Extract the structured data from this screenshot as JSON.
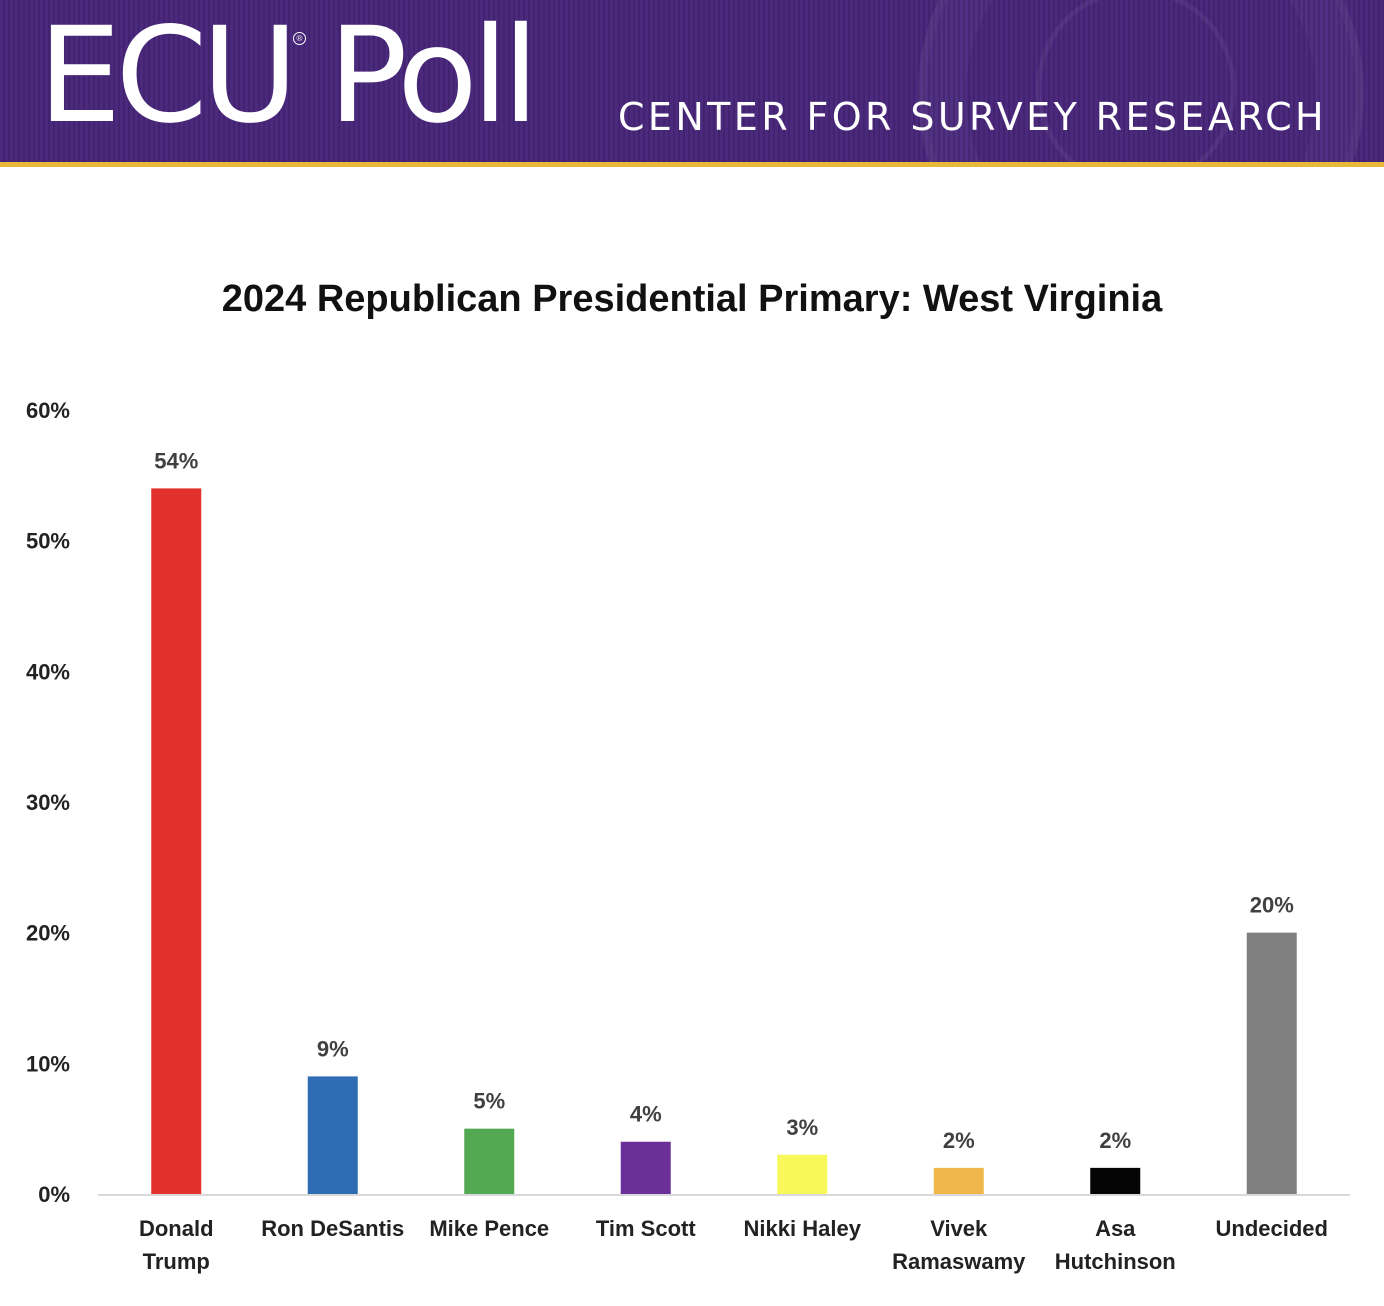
{
  "header": {
    "logo_text": "ECU Poll",
    "logo_mark": "®",
    "org_name": "CENTER FOR SURVEY RESEARCH",
    "background_color": "#4b2a7e",
    "accent_color": "#e8b838"
  },
  "chart_data": {
    "type": "bar",
    "title": "2024 Republican Presidential Primary: West Virginia",
    "xlabel": "",
    "ylabel": "",
    "ylim": [
      0,
      60
    ],
    "yticks": [
      "0%",
      "10%",
      "20%",
      "30%",
      "40%",
      "50%",
      "60%"
    ],
    "grid": false,
    "categories": [
      [
        "Donald",
        "Trump"
      ],
      [
        "Ron DeSantis"
      ],
      [
        "Mike Pence"
      ],
      [
        "Tim Scott"
      ],
      [
        "Nikki Haley"
      ],
      [
        "Vivek",
        "Ramaswamy"
      ],
      [
        "Asa",
        "Hutchinson"
      ],
      [
        "Undecided"
      ]
    ],
    "values": [
      54,
      9,
      5,
      4,
      3,
      2,
      2,
      20
    ],
    "data_labels": [
      "54%",
      "9%",
      "5%",
      "4%",
      "3%",
      "2%",
      "2%",
      "20%"
    ],
    "colors": [
      "#e2302c",
      "#2e6db4",
      "#53a852",
      "#6a2f98",
      "#f8f85a",
      "#f0b84a",
      "#050505",
      "#808080"
    ]
  }
}
